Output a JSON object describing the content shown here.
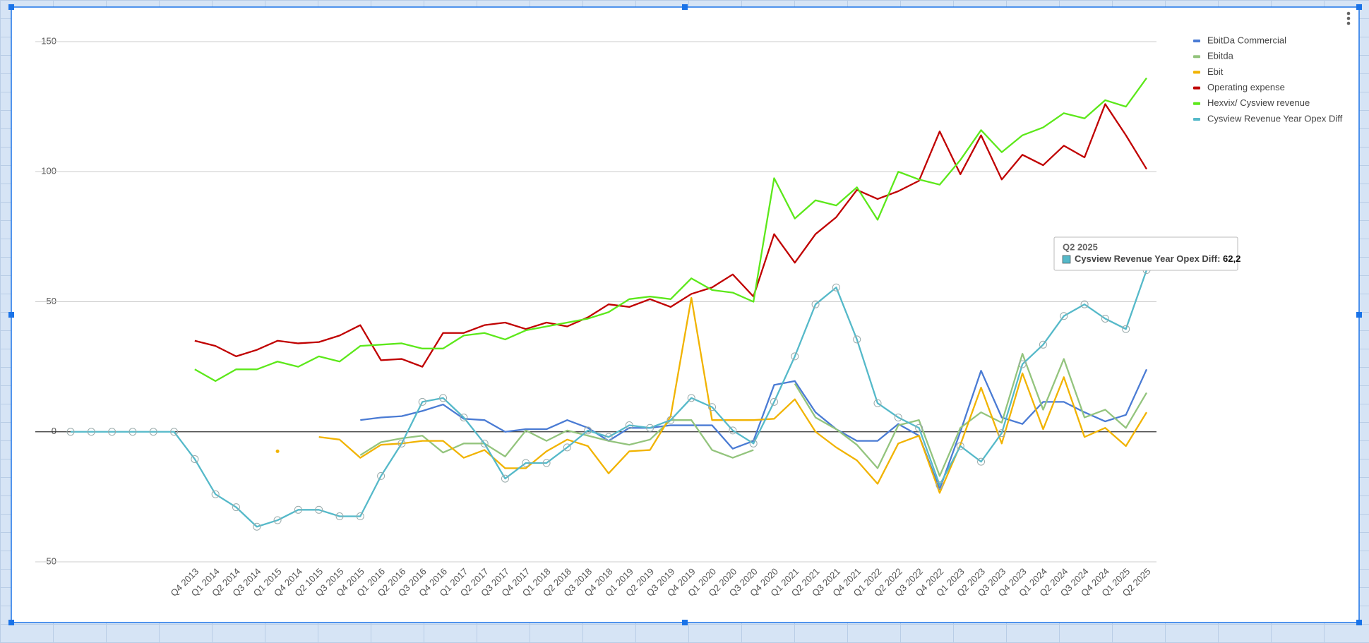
{
  "chart_data": {
    "type": "line",
    "categories": [
      null,
      null,
      null,
      null,
      null,
      null,
      "Q4 2013",
      "Q1 2014",
      "Q2 2014",
      "Q3 2014",
      "Q1 2015",
      "Q4 2014",
      "Q2 1015",
      "Q3 2015",
      "Q4 2015",
      "Q1 2016",
      "Q2 2016",
      "Q3 2016",
      "Q4 2016",
      "Q1 2017",
      "Q2 2017",
      "Q3 2017",
      "Q4 2017",
      "Q1 2018",
      "Q2 2018",
      "Q3 2018",
      "Q4 2018",
      "Q1 2019",
      "Q2 2019",
      "Q3 2019",
      "Q4 2019",
      "Q1 2020",
      "Q2 2020",
      "Q3 2020",
      "Q4 2020",
      "Q1 2021",
      "Q2 2021",
      "Q3 2021",
      "Q4 2021",
      "Q1 2022",
      "Q2 2022",
      "Q3 2022",
      "Q4 2022",
      "Q1 2023",
      "Q2 2023",
      "Q3 2023",
      "Q4 2023",
      "Q1 2024",
      "Q2 2024",
      "Q3 2024",
      "Q4 2024",
      "Q1 2025",
      "Q2 2025"
    ],
    "series": [
      {
        "name": "EbitDa Commercial",
        "color": "#4a7bd4",
        "values": [
          null,
          null,
          null,
          null,
          null,
          null,
          null,
          null,
          null,
          null,
          null,
          null,
          null,
          null,
          4.5,
          5.5,
          6,
          8,
          10.5,
          5,
          4.5,
          0,
          1,
          1,
          4.5,
          1.5,
          -3.5,
          1.5,
          1.5,
          2.5,
          2.5,
          2.5,
          -6.5,
          -3.5,
          18,
          19.5,
          7.5,
          1,
          -3.5,
          -3.5,
          3,
          -1.5,
          -22,
          0,
          23.5,
          5.5,
          3,
          11.5,
          11.5,
          7.5,
          4,
          6.5,
          24
        ]
      },
      {
        "name": "Ebitda",
        "color": "#93c47d",
        "values": [
          null,
          null,
          null,
          null,
          null,
          null,
          null,
          null,
          null,
          null,
          null,
          null,
          null,
          null,
          -9,
          -4,
          -2.5,
          -1.5,
          -8,
          -4.5,
          -4.5,
          -9.5,
          0.5,
          -3.5,
          0.5,
          -1.5,
          -3.5,
          -5,
          -3,
          4.5,
          4.5,
          -7,
          -10,
          -7,
          null,
          18.5,
          5.5,
          1,
          -5,
          -14,
          2.5,
          4.5,
          -17,
          1.5,
          7.5,
          3.5,
          30,
          8.5,
          28,
          5.5,
          8.5,
          1.5,
          15
        ]
      },
      {
        "name": "Ebit",
        "color": "#f1b300",
        "values": [
          null,
          null,
          null,
          null,
          null,
          null,
          null,
          null,
          null,
          null,
          -7.5,
          null,
          -2,
          -3,
          -10,
          -5,
          -4.5,
          -3.5,
          -3.5,
          -10,
          -7,
          -14,
          -14,
          -7.5,
          -3,
          -5.5,
          -16,
          -7.5,
          -7,
          6,
          51.5,
          4.5,
          4.5,
          4.5,
          5,
          12.5,
          0,
          -6,
          -11,
          -20,
          -4.5,
          -1.5,
          -23.5,
          -5,
          17,
          -4.5,
          22.5,
          1,
          21,
          -2,
          1.5,
          -5.5,
          7.5
        ]
      },
      {
        "name": "Operating expense",
        "color": "#c00000",
        "values": [
          null,
          null,
          null,
          null,
          null,
          null,
          35,
          33,
          29,
          31.5,
          35,
          34,
          34.5,
          37,
          41,
          27.5,
          28,
          25,
          38,
          38,
          41,
          42,
          39.5,
          42,
          40.5,
          44,
          49,
          48,
          51,
          48,
          53,
          55.5,
          60.5,
          52,
          76,
          65,
          76,
          82.5,
          93,
          89.5,
          92.5,
          96.5,
          115.5,
          99,
          114,
          97,
          106.5,
          102.5,
          110,
          105.5,
          126,
          114,
          101
        ]
      },
      {
        "name": "Hexvix/ Cysview revenue",
        "color": "#5ce81a",
        "values": [
          null,
          null,
          null,
          null,
          null,
          null,
          24,
          19.5,
          24,
          24,
          27,
          25,
          29,
          27,
          33,
          33.5,
          34,
          32,
          32,
          37,
          38,
          35.5,
          39,
          40.5,
          42,
          43.5,
          46,
          51,
          52,
          51,
          59,
          54.5,
          53.5,
          50,
          97.5,
          82,
          89,
          87,
          94,
          81.5,
          100,
          97,
          95,
          104.5,
          116,
          107.5,
          114,
          117,
          122.5,
          120.5,
          127.5,
          125,
          136
        ]
      },
      {
        "name": "Cysview Revenue Year Opex Diff",
        "color": "#55b9c9",
        "markers": true,
        "values": [
          0,
          0,
          0,
          0,
          0,
          0,
          -10.5,
          -24,
          -29,
          -36.5,
          -34,
          -30,
          -30,
          -32.5,
          -32.5,
          -17,
          -4.5,
          11.5,
          13,
          5.5,
          -4.5,
          -18,
          -12,
          -12,
          -6,
          0.5,
          -2,
          2.5,
          1.5,
          4.5,
          13,
          9.5,
          0.5,
          -4.5,
          11.5,
          29,
          49,
          55.5,
          35.5,
          11,
          5.5,
          1.5,
          -20.5,
          -5.5,
          -11.5,
          -0.5,
          26,
          33.5,
          44.5,
          49,
          43.5,
          39.5,
          62.2
        ]
      }
    ],
    "ylim": [
      -50,
      150
    ],
    "yticks": [
      -50,
      0,
      50,
      100,
      150
    ],
    "grid": true,
    "legend": "right",
    "tooltip": {
      "title": "Q2 2025",
      "series": "Cysview Revenue Year Opex Diff:",
      "value": "62,2"
    }
  }
}
